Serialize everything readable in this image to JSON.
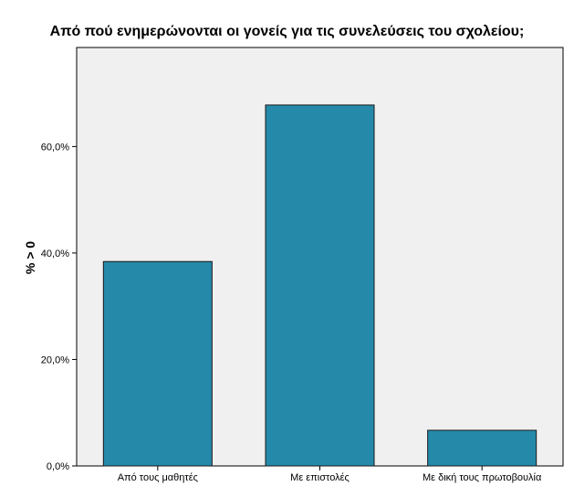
{
  "chart_data": {
    "type": "bar",
    "title": "Από πού ενημερώνονται οι γονείς για τις συνελεύσεις του σχολείου;",
    "xlabel": "",
    "ylabel": "% > 0",
    "categories": [
      "Από τους μαθητές",
      "Με επιστολές",
      "Με δική τους πρωτοβουλία"
    ],
    "values": [
      38.4,
      67.8,
      6.7
    ],
    "ylim": [
      0,
      78.6
    ],
    "yticks": [
      0,
      20,
      40,
      60
    ],
    "ytick_labels": [
      "0,0%",
      "20,0%",
      "40,0%",
      "60,0%"
    ],
    "grid": false,
    "colors": {
      "bar": "#2589a9",
      "bar_edge": "#1a1a1a",
      "plot_background": "#f0f0f0"
    }
  }
}
